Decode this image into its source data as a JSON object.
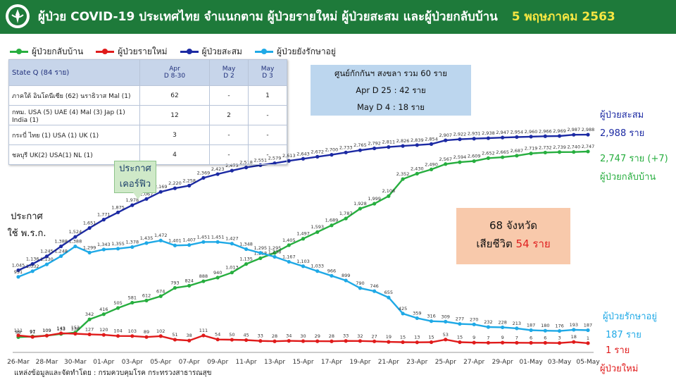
{
  "header": {
    "title": "ผู้ป่วย COVID-19 ประเทศไทย จำแนกตาม ผู้ป่วยรายใหม่ ผู้ป่วยสะสม  และผู้ป่วยกลับบ้าน",
    "date": "5 พฤษภาคม 2563",
    "bg_color": "#1e7a3a"
  },
  "legend": [
    {
      "label": "ผู้ป่วยกลับบ้าน",
      "color": "#27ae3f"
    },
    {
      "label": "ผู้ป่วยรายใหม่",
      "color": "#e01b1b"
    },
    {
      "label": "ผู้ป่วยสะสม",
      "color": "#1c2aa3"
    },
    {
      "label": "ผู้ป่วยยังรักษาอยู่",
      "color": "#1fa9e6"
    }
  ],
  "state_table": {
    "header": [
      "State Q   (84 ราย)",
      "Apr\nD 8-30",
      "May\nD 2",
      "May\nD 3"
    ],
    "rows": [
      [
        "ภาคใต้ อินโดนีเซีย (62) นราธิวาส Mal (1)",
        "62",
        "-",
        "1"
      ],
      [
        "กทม. USA  (5)  UAE (4) Mal (3) Jap (1) India (1)",
        "12",
        "2",
        "-"
      ],
      [
        "กระบี่ ไทย  (1) USA (1) UK (1)",
        "3",
        "-",
        "-"
      ],
      [
        "ชลบุรี UK(2) USA(1) NL (1)",
        "4",
        "-",
        "-"
      ]
    ]
  },
  "quarantine_box": {
    "line1": "ศูนย์กักกันฯ สงขลา  รวม 60 ราย",
    "line2": "Apr D 25 : 42 ราย",
    "line3": "May D 4 : 18 ราย"
  },
  "deaths_box": {
    "line1": "68 จังหวัด",
    "line2_prefix": "เสียชีวิต",
    "line2_value": "54 ราย"
  },
  "callouts": {
    "curfew_1": "ประกาศ",
    "curfew_2": "เคอร์ฟิว",
    "decree_1": "ประกาศ",
    "decree_2": "ใช้ พ.ร.ก."
  },
  "right_labels": {
    "cumulative_title": "ผู้ป่วยสะสม",
    "cumulative_value": "2,988 ราย",
    "recovered_value": "2,747 ราย (+7)",
    "recovered_title": "ผู้ป่วยกลับบ้าน",
    "active_title": "ผู้ป่วยรักษาอยู่",
    "active_value": "187 ราย",
    "new_value": "1 ราย",
    "new_title": "ผู้ป่วยใหม่"
  },
  "footer": "แหล่งข้อมูลและจัดทำโดย : กรมควบคุมโรค กระทรวงสาธารณสุข",
  "chart_data": {
    "type": "line",
    "x": [
      "26-Mar",
      "27-Mar",
      "28-Mar",
      "29-Mar",
      "30-Mar",
      "31-Mar",
      "01-Apr",
      "02-Apr",
      "03-Apr",
      "04-Apr",
      "05-Apr",
      "06-Apr",
      "07-Apr",
      "08-Apr",
      "09-Apr",
      "10-Apr",
      "11-Apr",
      "12-Apr",
      "13-Apr",
      "14-Apr",
      "15-Apr",
      "16-Apr",
      "17-Apr",
      "18-Apr",
      "19-Apr",
      "20-Apr",
      "21-Apr",
      "22-Apr",
      "23-Apr",
      "24-Apr",
      "25-Apr",
      "26-Apr",
      "27-Apr",
      "28-Apr",
      "29-Apr",
      "30-Apr",
      "01-May",
      "02-May",
      "03-May",
      "04-May",
      "05-May"
    ],
    "x_tick_labels": [
      "26-Mar",
      "28-Mar",
      "30-Mar",
      "01-Apr",
      "03-Apr",
      "05-Apr",
      "07-Apr",
      "09-Apr",
      "11-Apr",
      "13-Apr",
      "15-Apr",
      "17-Apr",
      "19-Apr",
      "21-Apr",
      "23-Apr",
      "25-Apr",
      "27-Apr",
      "29-Apr",
      "01-May",
      "03-May",
      "05-May"
    ],
    "ylim": [
      0,
      3100
    ],
    "series": [
      {
        "name": "ผู้ป่วยสะสม",
        "color": "#1c2aa3",
        "values": [
          1045,
          1136,
          1245,
          1388,
          1524,
          1651,
          1771,
          1875,
          1978,
          2067,
          2169,
          2220,
          2258,
          2369,
          2423,
          2473,
          2518,
          2551,
          2579,
          2613,
          2643,
          2672,
          2700,
          2733,
          2765,
          2792,
          2811,
          2826,
          2839,
          2854,
          2907,
          2922,
          2931,
          2938,
          2947,
          2954,
          2960,
          2966,
          2969,
          2987,
          2988
        ]
      },
      {
        "name": "ผู้ป่วยกลับบ้าน",
        "color": "#27ae3f",
        "values": [
          88,
          97,
          109,
          133,
          153,
          342,
          416,
          505,
          581,
          612,
          674,
          793,
          824,
          888,
          940,
          1013,
          1135,
          1218,
          1295,
          1405,
          1497,
          1593,
          1689,
          1787,
          1928,
          1999,
          2108,
          2352,
          2430,
          2490,
          2567,
          2594,
          2609,
          2652,
          2665,
          2687,
          2719,
          2732,
          2739,
          2740,
          2747
        ]
      },
      {
        "name": "ผู้ป่วยยังรักษาอยู่",
        "color": "#1fa9e6",
        "values": [
          951,
          1032,
          1130,
          1248,
          1388,
          1299,
          1343,
          1355,
          1378,
          1435,
          1472,
          1401,
          1407,
          1451,
          1451,
          1427,
          1348,
          1295,
          1238,
          1167,
          1103,
          1033,
          966,
          899,
          790,
          746,
          655,
          425,
          359,
          316,
          309,
          277,
          270,
          232,
          228,
          213,
          187,
          180,
          176,
          193,
          187
        ]
      },
      {
        "name": "ผู้ป่วยรายใหม่",
        "color": "#e01b1b",
        "values": [
          111,
          91,
          109,
          143,
          136,
          127,
          120,
          104,
          103,
          89,
          102,
          51,
          38,
          111,
          54,
          50,
          45,
          33,
          28,
          34,
          30,
          29,
          28,
          33,
          32,
          27,
          19,
          15,
          13,
          15,
          53,
          15,
          9,
          7,
          9,
          7,
          6,
          6,
          3,
          18,
          1
        ]
      }
    ]
  }
}
